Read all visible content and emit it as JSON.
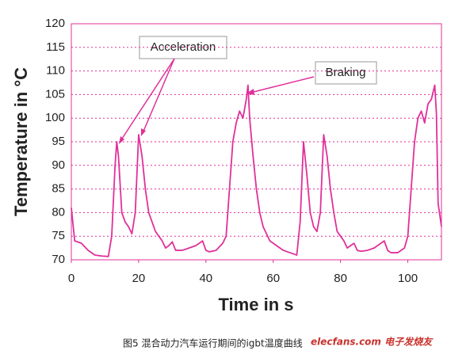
{
  "chart_data": {
    "type": "line",
    "x_label": "Time in s",
    "y_label": "Temperature in °C",
    "caption": "图5 混合动力汽车运行期间的igbt温度曲线",
    "watermark": "elecfans.com 电子发烧友",
    "annotations": [
      "Acceleration",
      "Braking"
    ],
    "xlim": [
      0,
      110
    ],
    "ylim": [
      70,
      120
    ],
    "xticks": [
      0,
      20,
      40,
      60,
      80,
      100
    ],
    "yticks": [
      70,
      75,
      80,
      85,
      90,
      95,
      100,
      105,
      110,
      115,
      120
    ],
    "grid": true,
    "color": "#e0309a",
    "x": [
      0,
      1,
      3,
      5,
      7,
      9,
      11,
      12,
      13,
      13.5,
      14,
      15,
      16,
      17,
      18,
      19,
      20,
      21,
      22,
      23,
      24,
      25,
      26,
      27,
      28,
      29,
      30,
      31,
      33,
      35,
      37,
      39,
      40,
      41,
      43,
      45,
      46,
      47,
      48,
      49,
      50,
      51,
      52,
      52.5,
      53,
      54,
      55,
      56,
      57,
      59,
      61,
      63,
      65,
      67,
      68,
      69,
      70,
      71,
      72,
      73,
      74,
      75,
      76,
      77,
      78,
      79,
      80,
      81,
      82,
      83,
      84,
      85,
      86,
      88,
      90,
      92,
      93,
      94,
      95,
      97,
      99,
      100,
      101,
      102,
      103,
      104,
      105,
      106,
      107,
      108,
      108.5,
      109,
      110
    ],
    "values": [
      81,
      74,
      73.5,
      72,
      71,
      70.8,
      70.7,
      75,
      90,
      95,
      92,
      80,
      78,
      77,
      75.5,
      80,
      96.5,
      92,
      85,
      80,
      78,
      76,
      75,
      74,
      72.5,
      73,
      73.8,
      72,
      72,
      72.5,
      73,
      74,
      72,
      71.7,
      72,
      73.5,
      75,
      85,
      95,
      99,
      101.5,
      100,
      104,
      107,
      100,
      92,
      85,
      80,
      77,
      74,
      73,
      72,
      71.5,
      71,
      78,
      95,
      88,
      80,
      77,
      76,
      80,
      96.5,
      92,
      85,
      80,
      76,
      75,
      74,
      72.5,
      73,
      73.5,
      72,
      71.8,
      72,
      72.5,
      73.5,
      74,
      72,
      71.5,
      71.5,
      72.5,
      75,
      85,
      95,
      100,
      101.5,
      99,
      103,
      104,
      107,
      101,
      82,
      77
    ]
  }
}
